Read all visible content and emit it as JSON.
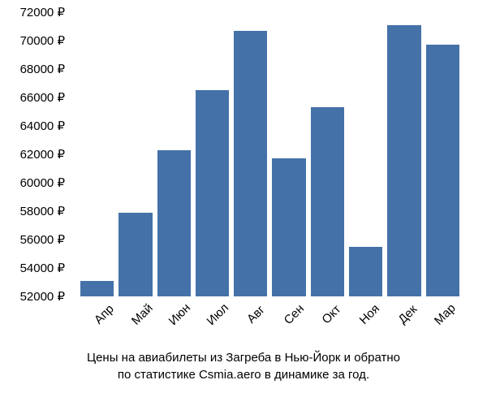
{
  "chart": {
    "type": "bar",
    "caption_line1": "Цены на авиабилеты из Загреба в Нью-Йорк и обратно",
    "caption_line2": "по статистике Csmia.aero в динамике за год.",
    "y_axis": {
      "min": 52000,
      "max": 72000,
      "step": 2000,
      "suffix": " ₽",
      "ticks": [
        {
          "value": 72000,
          "label": "72000 ₽"
        },
        {
          "value": 70000,
          "label": "70000 ₽"
        },
        {
          "value": 68000,
          "label": "68000 ₽"
        },
        {
          "value": 66000,
          "label": "66000 ₽"
        },
        {
          "value": 64000,
          "label": "64000 ₽"
        },
        {
          "value": 62000,
          "label": "62000 ₽"
        },
        {
          "value": 60000,
          "label": "60000 ₽"
        },
        {
          "value": 58000,
          "label": "58000 ₽"
        },
        {
          "value": 56000,
          "label": "56000 ₽"
        },
        {
          "value": 54000,
          "label": "54000 ₽"
        },
        {
          "value": 52000,
          "label": "52000 ₽"
        }
      ]
    },
    "categories": [
      "Апр",
      "Май",
      "Июн",
      "Июл",
      "Авг",
      "Сен",
      "Окт",
      "Ноя",
      "Дек",
      "Мар"
    ],
    "values": [
      53100,
      57900,
      62300,
      66500,
      70700,
      61700,
      65300,
      55500,
      71100,
      69700
    ],
    "bar_color": "#4472a8",
    "background_color": "#ffffff",
    "text_color": "#000000",
    "label_fontsize": 15,
    "caption_fontsize": 15,
    "x_label_rotation": -45
  }
}
